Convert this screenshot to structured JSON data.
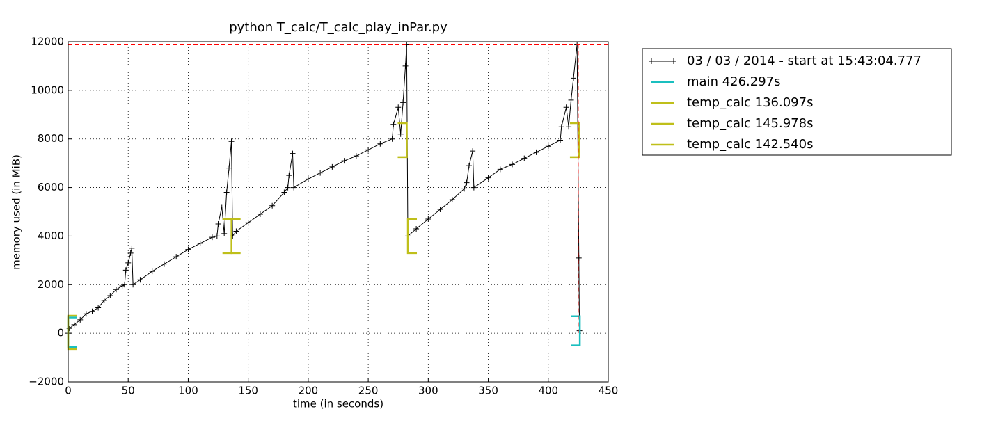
{
  "chart_data": {
    "type": "memory_profile",
    "title": "python T_calc/T_calc_play_inPar.py",
    "x_label": "time (in seconds)",
    "y_label": "memory used (in MiB)",
    "xlim": [
      0,
      450
    ],
    "ylim": [
      -2000,
      12000
    ],
    "xticks": [
      0,
      50,
      100,
      150,
      200,
      250,
      300,
      350,
      400,
      450
    ],
    "yticks": [
      {
        "value": -2000,
        "label": "−2000"
      },
      0,
      2000,
      4000,
      6000,
      8000,
      10000,
      12000
    ],
    "grid": true,
    "legend": "outside-right",
    "series": [
      {
        "name": "03 / 03 / 2014 - start at 15:43:04.777",
        "color": "#000000",
        "x": [
          0,
          1,
          5,
          10,
          15,
          20,
          25,
          30,
          35,
          40,
          45,
          47,
          48,
          50,
          52,
          53,
          54,
          60,
          70,
          80,
          90,
          100,
          110,
          120,
          124,
          125,
          128,
          130,
          132,
          134,
          136,
          137,
          140,
          150,
          160,
          170,
          180,
          183,
          184,
          187,
          188,
          200,
          210,
          220,
          230,
          240,
          250,
          260,
          270,
          271,
          275,
          277,
          279,
          281,
          282,
          283,
          290,
          300,
          310,
          320,
          330,
          332,
          334,
          337,
          338,
          350,
          360,
          370,
          380,
          390,
          400,
          410,
          411,
          415,
          417,
          419,
          421,
          424,
          425.5,
          426
        ],
        "values": [
          0,
          200,
          350,
          550,
          800,
          900,
          1050,
          1350,
          1550,
          1800,
          1950,
          2000,
          2600,
          2900,
          3300,
          3500,
          2000,
          2200,
          2550,
          2850,
          3150,
          3450,
          3700,
          3950,
          4000,
          4500,
          5200,
          4100,
          5800,
          6800,
          7900,
          4000,
          4200,
          4550,
          4900,
          5250,
          5800,
          6000,
          6500,
          7400,
          6000,
          6350,
          6600,
          6850,
          7100,
          7300,
          7550,
          7800,
          8000,
          8600,
          9300,
          8200,
          9500,
          11000,
          11900,
          4000,
          4300,
          4700,
          5100,
          5500,
          5950,
          6200,
          6900,
          7500,
          6000,
          6400,
          6750,
          6950,
          7200,
          7450,
          7700,
          7950,
          8500,
          9300,
          8500,
          9600,
          10500,
          11900,
          3100,
          100
        ]
      }
    ],
    "functions": [
      {
        "name": "main 426.297s",
        "color": "#1abfbf",
        "start": 0,
        "end": 426.297,
        "start_range": [
          -560,
          650
        ],
        "end_range": [
          -500,
          700
        ]
      },
      {
        "name": "temp_calc 136.097s",
        "color": "#bfbf1a",
        "start": 0,
        "end": 136.097,
        "start_range": [
          -650,
          720
        ],
        "end_range": [
          3300,
          4700
        ]
      },
      {
        "name": "temp_calc 145.978s",
        "color": "#bfbf1a",
        "start": 136.1,
        "end": 282.1,
        "start_range": [
          3300,
          4700
        ],
        "end_range": [
          7250,
          8650
        ]
      },
      {
        "name": "temp_calc 142.540s",
        "color": "#bfbf1a",
        "start": 283,
        "end": 425.6,
        "start_range": [
          3300,
          4700
        ],
        "end_range": [
          7250,
          8650
        ]
      }
    ],
    "peak": {
      "x": 425,
      "y": 11900,
      "color": "#ff0000"
    }
  }
}
